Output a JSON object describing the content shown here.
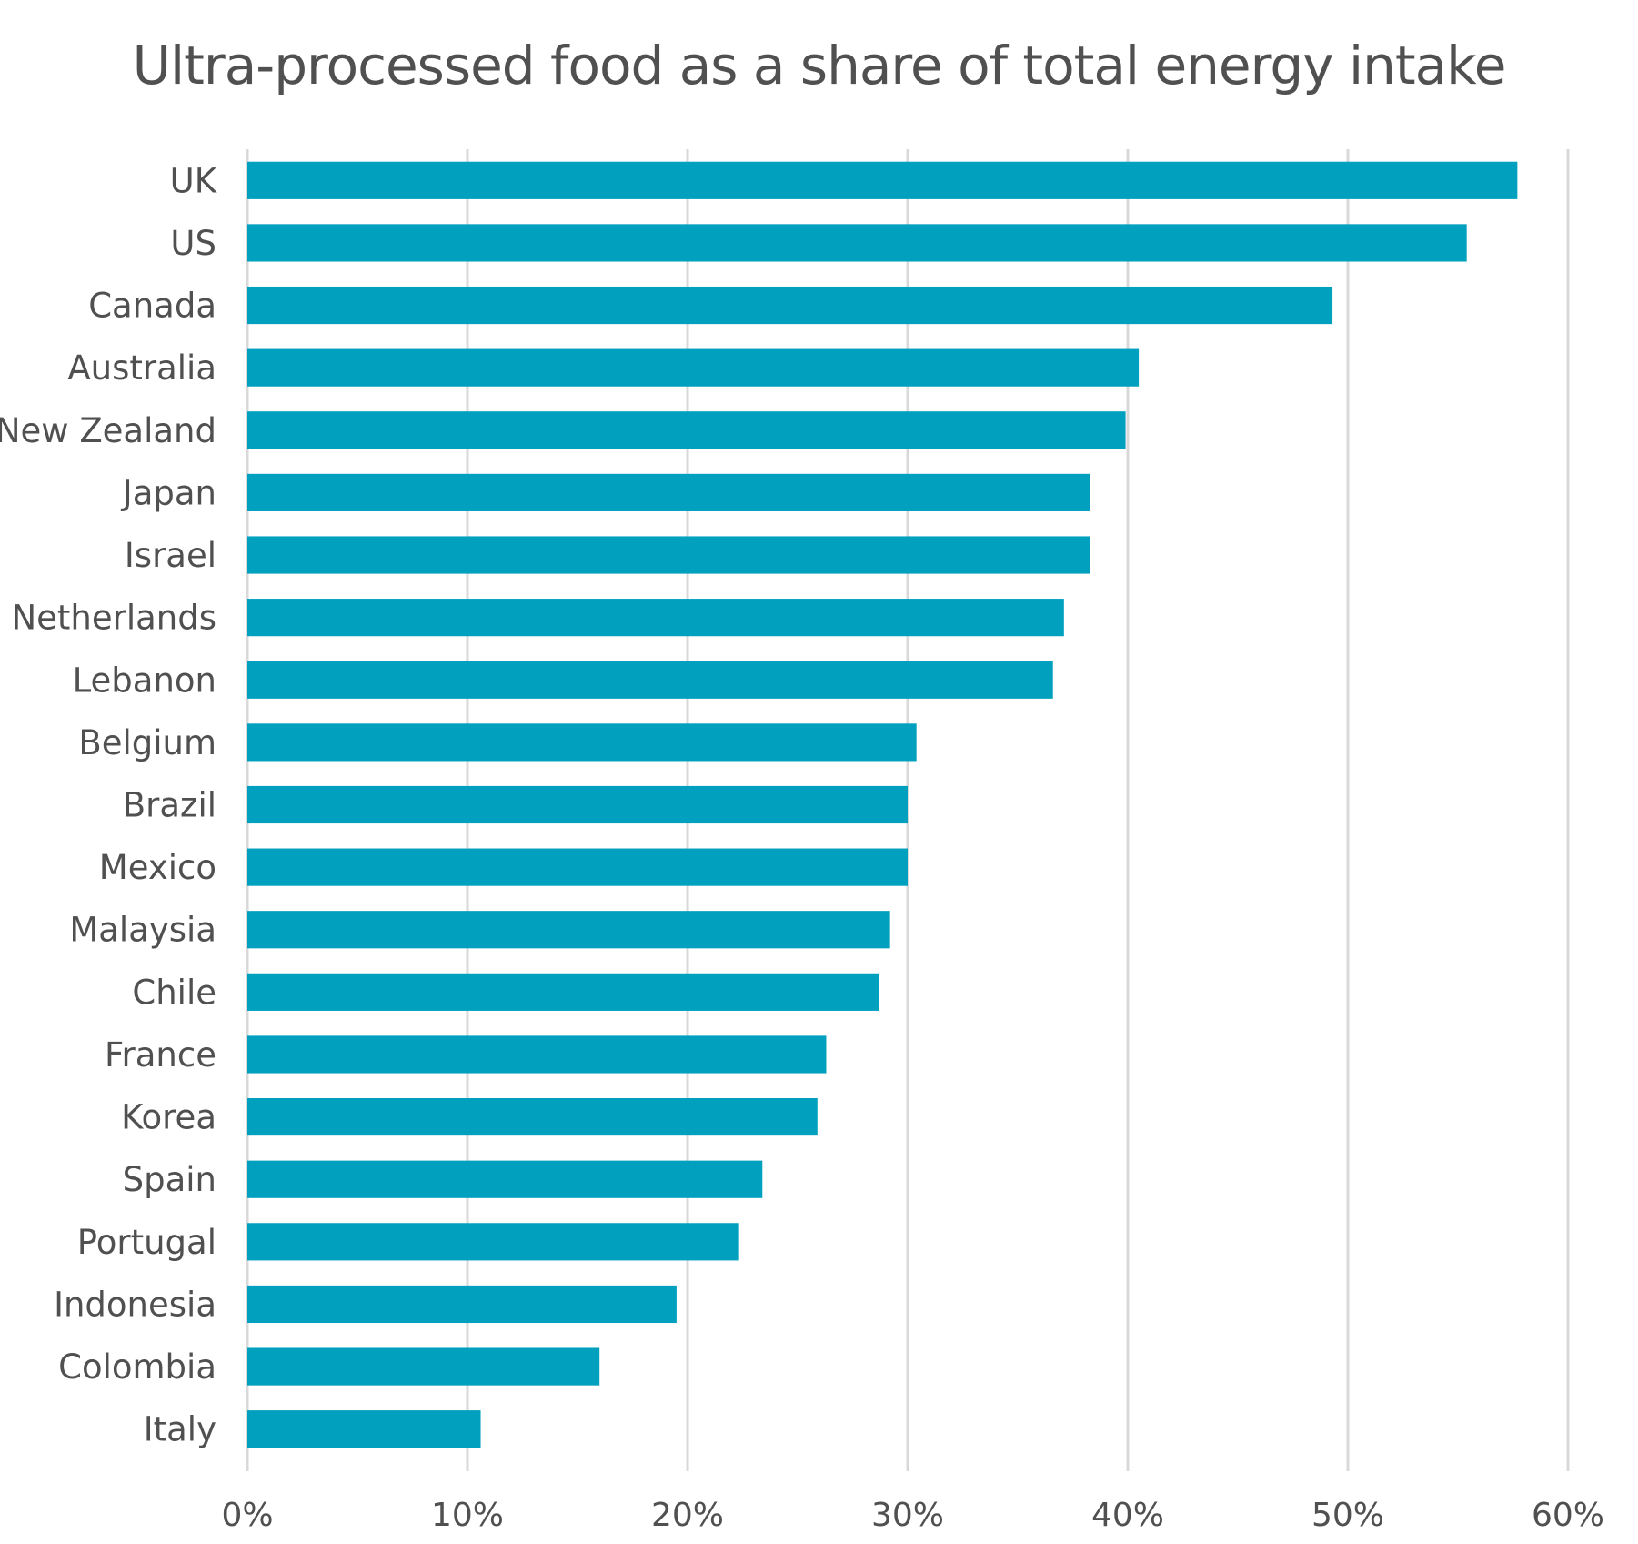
{
  "chart_data": {
    "type": "bar",
    "orientation": "horizontal",
    "title": "Ultra-processed food as a share of total energy intake",
    "xlabel": "",
    "ylabel": "",
    "xlim": [
      0,
      60
    ],
    "xticks": [
      "0%",
      "10%",
      "20%",
      "30%",
      "40%",
      "50%",
      "60%"
    ],
    "grid": true,
    "bar_color": "#00A0BE",
    "categories": [
      "UK",
      "US",
      "Canada",
      "Australia",
      "New Zealand",
      "Japan",
      "Israel",
      "Netherlands",
      "Lebanon",
      "Belgium",
      "Brazil",
      "Mexico",
      "Malaysia",
      "Chile",
      "France",
      "Korea",
      "Spain",
      "Portugal",
      "Indonesia",
      "Colombia",
      "Italy"
    ],
    "values": [
      57.7,
      55.4,
      49.3,
      40.5,
      39.9,
      38.3,
      38.3,
      37.1,
      36.6,
      30.4,
      30.0,
      30.0,
      29.2,
      28.7,
      26.3,
      25.9,
      23.4,
      22.3,
      19.5,
      16.0,
      10.6
    ]
  }
}
